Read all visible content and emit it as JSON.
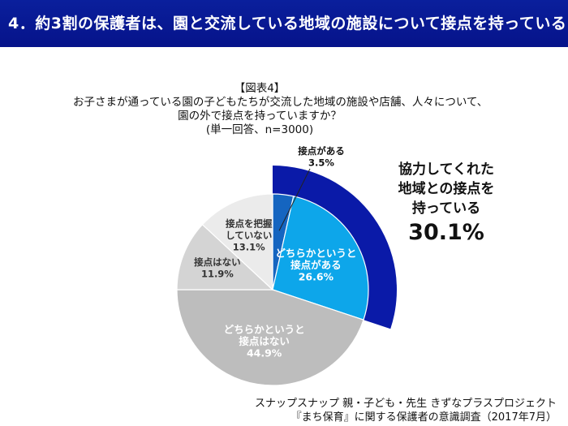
{
  "header": {
    "title": "4．約3割の保護者は、園と交流している地域の施設について接点を持っている",
    "bg_color": "#0a1f9c"
  },
  "caption": {
    "figure_label": "【図表4】",
    "question_line1": "お子さまが通っている園の子どもたちが交流した地域の施設や店舗、人々について、",
    "question_line2": "園の外で接点を持っていますか？",
    "note": "(単一回答、n=3000)"
  },
  "chart_data": {
    "type": "pie",
    "start_angle_deg": 0,
    "direction": "clockwise",
    "unit": "%",
    "slices": [
      {
        "label_lines": [
          "接点がある"
        ],
        "value": 3.5,
        "value_label": "3.5%",
        "color": "#1565c0",
        "label_color": "#111111"
      },
      {
        "label_lines": [
          "どちらかというと",
          "接点がある"
        ],
        "value": 26.6,
        "value_label": "26.6%",
        "color": "#0da6ea",
        "label_color": "#ffffff"
      },
      {
        "label_lines": [
          "どちらかというと",
          "接点はない"
        ],
        "value": 44.9,
        "value_label": "44.9%",
        "color": "#bdbdbd",
        "label_color": "#ffffff"
      },
      {
        "label_lines": [
          "接点はない"
        ],
        "value": 11.9,
        "value_label": "11.9%",
        "color": "#d4d4d4",
        "label_color": "#333333"
      },
      {
        "label_lines": [
          "接点を把握",
          "していない"
        ],
        "value": 13.1,
        "value_label": "13.1%",
        "color": "#ebebeb",
        "label_color": "#333333"
      }
    ],
    "highlight": {
      "text_lines": [
        "協力してくれた",
        "地域との接点を",
        "持っている"
      ],
      "value_label": "30.1%",
      "value": 30.1,
      "color": "#0a1aa8"
    }
  },
  "source": {
    "line1": "スナップスナップ 親・子ども・先生 きずなプラスプロジェクト",
    "line2": "『まち保育』に関する保護者の意識調査（2017年7月）"
  }
}
